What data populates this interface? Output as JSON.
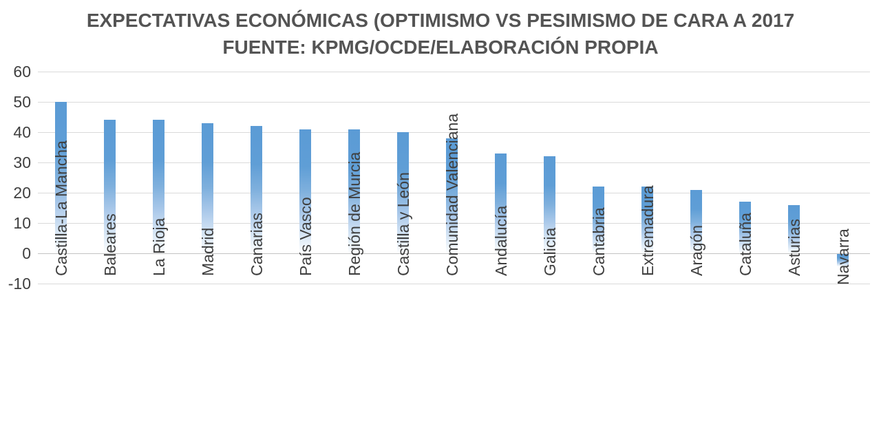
{
  "title": {
    "line1": "EXPECTATIVAS ECONÓMICAS (OPTIMISMO VS PESIMISMO DE CARA A 2017",
    "line2": "FUENTE: KPMG/OCDE/ELABORACIÓN PROPIA"
  },
  "chart_data": {
    "type": "bar",
    "title": "EXPECTATIVAS ECONÓMICAS (OPTIMISMO VS PESIMISMO DE CARA A 2017",
    "subtitle": "FUENTE: KPMG/OCDE/ELABORACIÓN PROPIA",
    "categories": [
      "Castilla-La Mancha",
      "Baleares",
      "La Rioja",
      "Madrid",
      "Canarias",
      "País Vasco",
      "Región de Murcia",
      "Castilla y León",
      "Comunidad Valenciana",
      "Andalucía",
      "Galicia",
      "Cantabria",
      "Extremadura",
      "Aragón",
      "Cataluña",
      "Asturias",
      "Navarra"
    ],
    "values": [
      50,
      44,
      44,
      43,
      42,
      41,
      41,
      40,
      38,
      33,
      32,
      22,
      22,
      21,
      17,
      16,
      -4
    ],
    "xlabel": "",
    "ylabel": "",
    "ylim": [
      -10,
      60
    ],
    "yticks": [
      60,
      50,
      40,
      30,
      20,
      10,
      0,
      -10
    ],
    "grid": true,
    "legend": false,
    "x_labels_rotation_degrees": -90,
    "colors": {
      "bar_top": "#5B9BD5",
      "bar_fade_to": "#FFFFFF",
      "gridline": "#DADADA",
      "zero_line": "#C3C3C3",
      "axis_text": "#3F3F3F",
      "title_text": "#545454"
    }
  }
}
